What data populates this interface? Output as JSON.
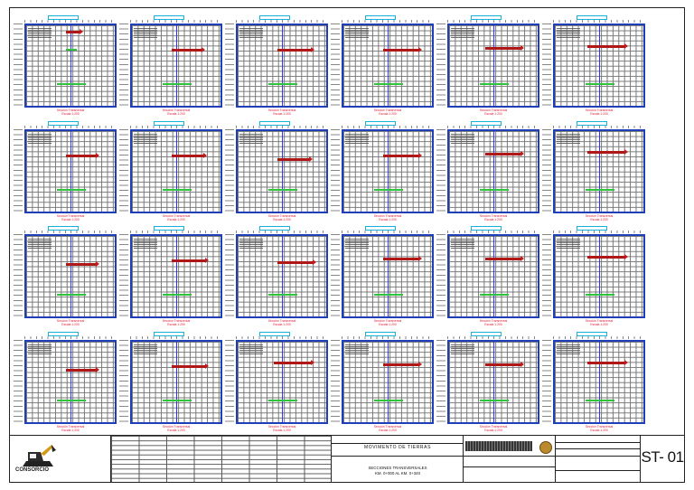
{
  "sheet": {
    "code": "ST- 01",
    "title": "MOVIMENTO DE TIERRAS",
    "subtitle_line1": "SECCIONES TRANSVERSALES",
    "subtitle_line2": "KM. 0+000 AL KM. 0+340",
    "logo_name": "CONSORCIO"
  },
  "colors": {
    "frame": "#1f3fb8",
    "axis": "#2a36ff",
    "ground": "#b01818",
    "design": "#2ec43c",
    "label": "#e0203a",
    "title_box": "#19b2d8"
  },
  "sections": [
    {
      "label1": "Sección Transversal",
      "label2": "Escala 1:200"
    },
    {
      "label1": "Sección Transversal",
      "label2": "Escala 1:200"
    },
    {
      "label1": "Sección Transversal",
      "label2": "Escala 1:200"
    },
    {
      "label1": "Sección Transversal",
      "label2": "Escala 1:200"
    },
    {
      "label1": "Sección Transversal",
      "label2": "Escala 1:200"
    },
    {
      "label1": "Sección Transversal",
      "label2": "Escala 1:200"
    },
    {
      "label1": "Sección Transversal",
      "label2": "Escala 1:200"
    },
    {
      "label1": "Sección Transversal",
      "label2": "Escala 1:200"
    },
    {
      "label1": "Sección Transversal",
      "label2": "Escala 1:200"
    },
    {
      "label1": "Sección Transversal",
      "label2": "Escala 1:200"
    },
    {
      "label1": "Sección Transversal",
      "label2": "Escala 1:200"
    },
    {
      "label1": "Sección Transversal",
      "label2": "Escala 1:200"
    },
    {
      "label1": "Sección Transversal",
      "label2": "Escala 1:200"
    },
    {
      "label1": "Sección Transversal",
      "label2": "Escala 1:200"
    },
    {
      "label1": "Sección Transversal",
      "label2": "Escala 1:200"
    },
    {
      "label1": "Sección Transversal",
      "label2": "Escala 1:200"
    },
    {
      "label1": "Sección Transversal",
      "label2": "Escala 1:200"
    },
    {
      "label1": "Sección Transversal",
      "label2": "Escala 1:200"
    },
    {
      "label1": "Sección Transversal",
      "label2": "Escala 1:200"
    },
    {
      "label1": "Sección Transversal",
      "label2": "Escala 1:200"
    },
    {
      "label1": "Sección Transversal",
      "label2": "Escala 1:200"
    },
    {
      "label1": "Sección Transversal",
      "label2": "Escala 1:200"
    },
    {
      "label1": "Sección Transversal",
      "label2": "Escala 1:200"
    },
    {
      "label1": "Sección Transversal",
      "label2": "Escala 1:200"
    }
  ]
}
